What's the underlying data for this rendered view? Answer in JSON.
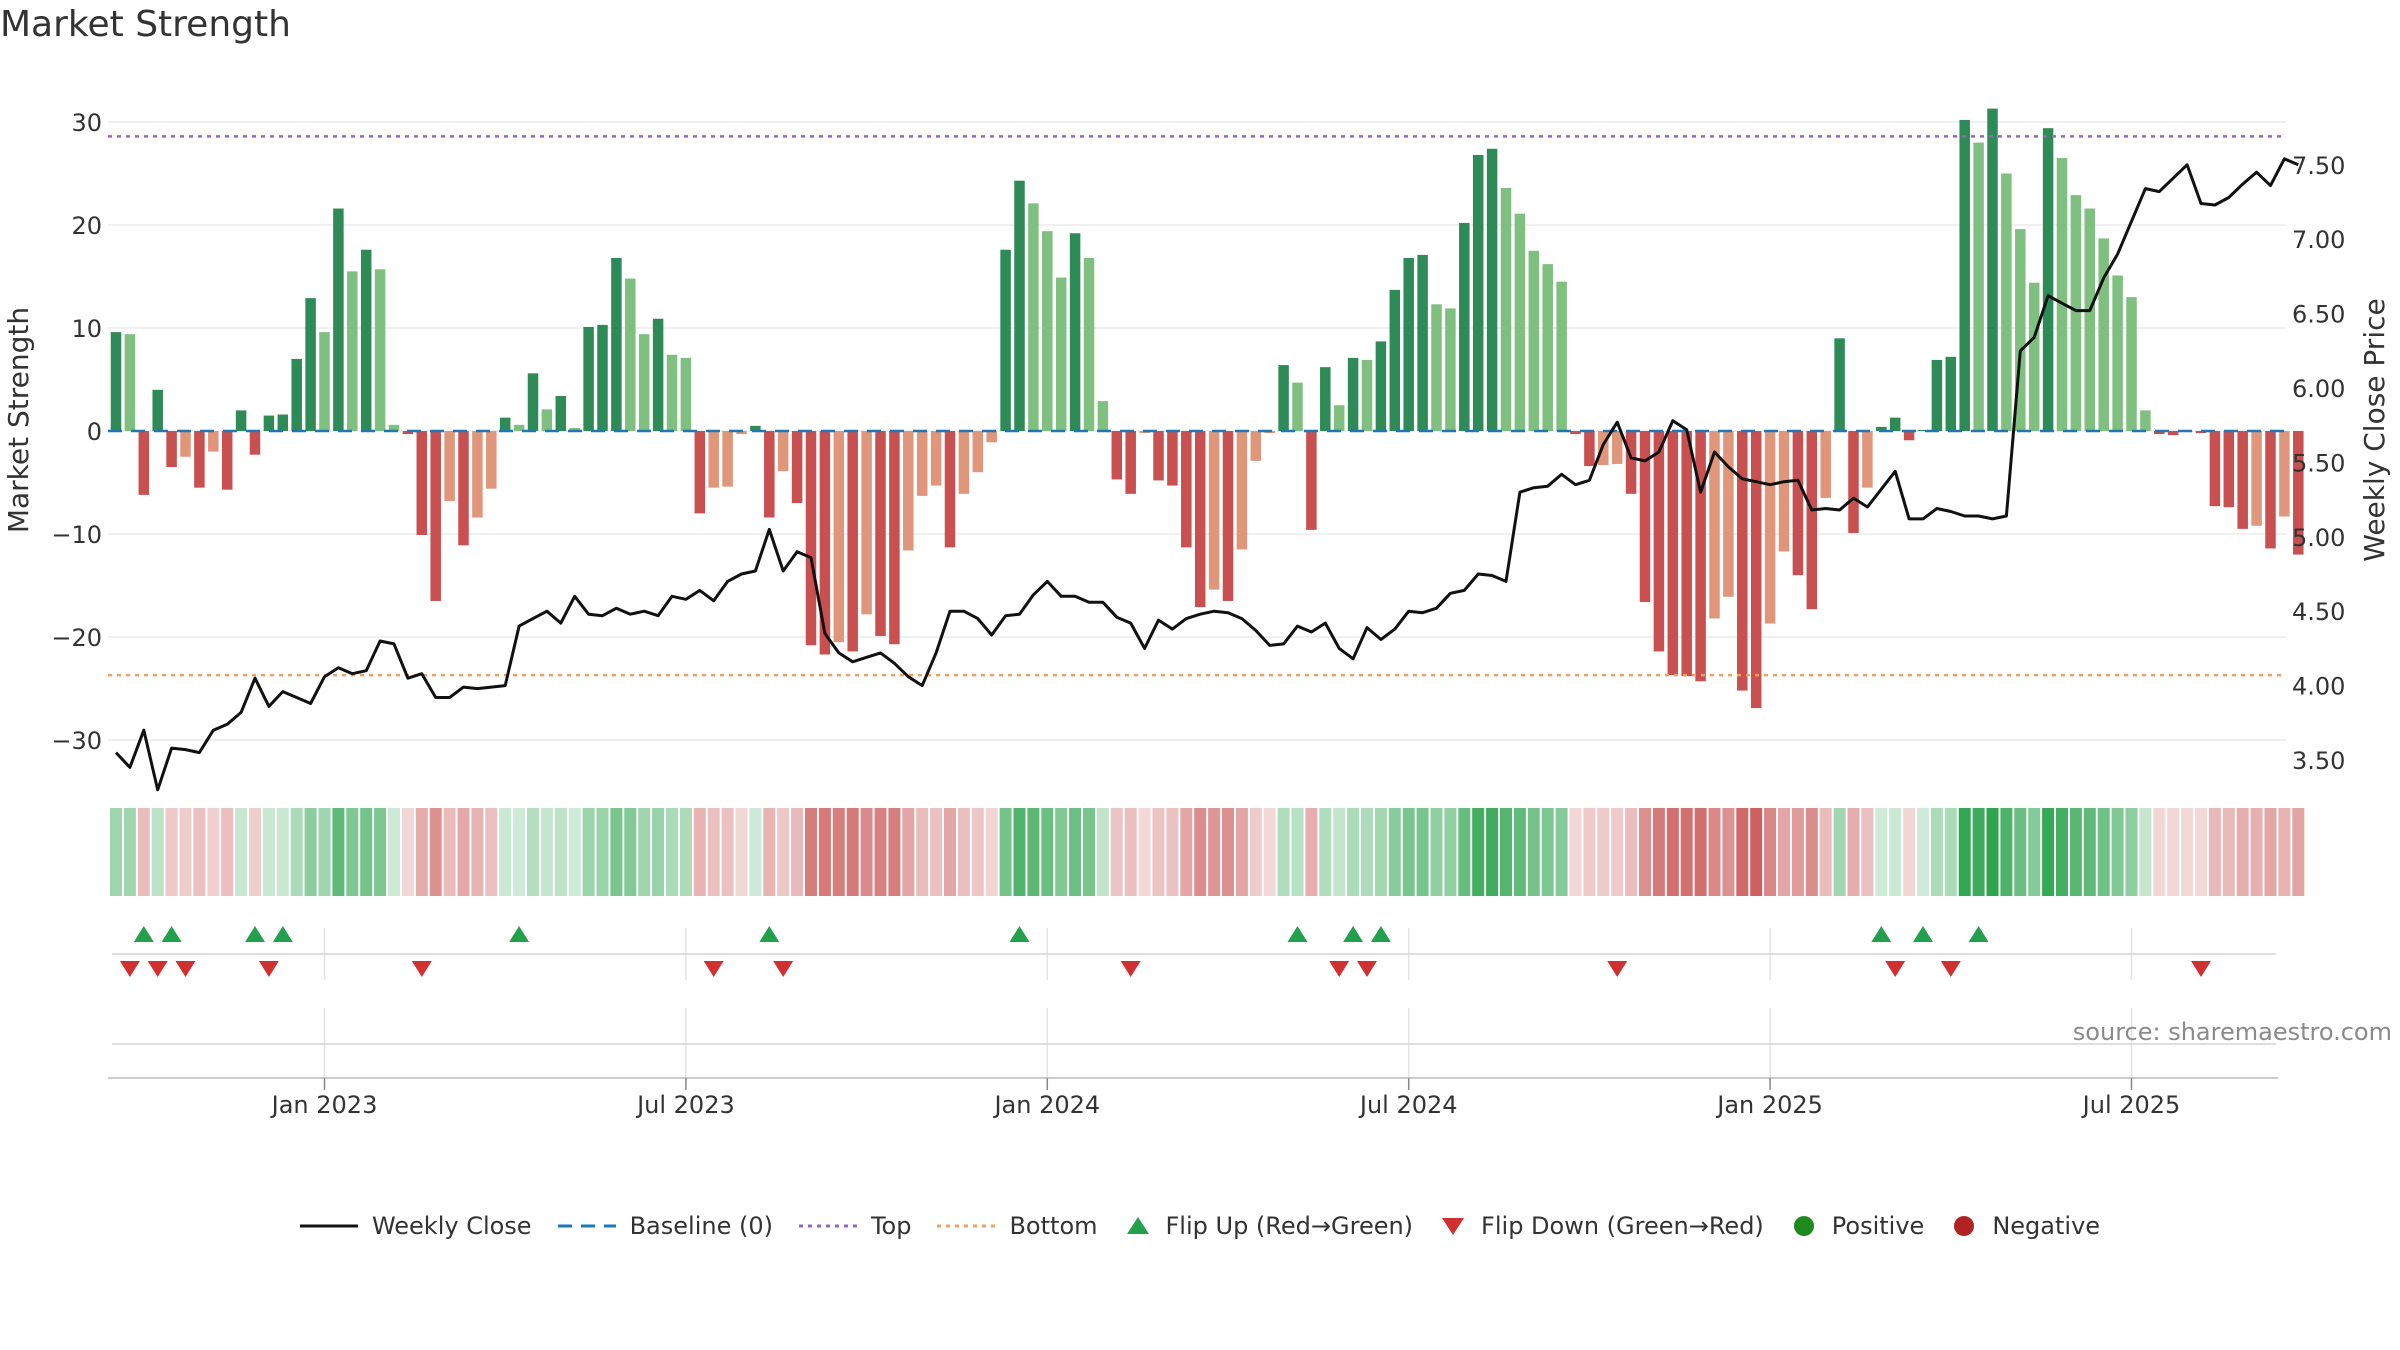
{
  "title": "Market Strength",
  "source": "source: sharemaestro.com",
  "colors": {
    "pos_dark": "#2e8b57",
    "pos_light": "#7fbf7f",
    "neg_dark": "#c85050",
    "neg_light": "#e0967a",
    "close": "#111111",
    "baseline": "#1f77b4",
    "top": "#9467bd",
    "bottom": "#f0a060",
    "flip_up": "#22a04b",
    "flip_down": "#d03030",
    "positive": "#1e8a1e",
    "negative": "#b22222"
  },
  "chart_data": {
    "type": "bar+line",
    "title": "Market Strength",
    "ylabel_left": "Market Strength",
    "ylabel_right": "Weekly Close Price",
    "ylim_left": [
      -34,
      33
    ],
    "ylim_right": [
      3.2,
      7.68
    ],
    "yticks_left": [
      "30",
      "20",
      "10",
      "0",
      "−10",
      "−20",
      "−30"
    ],
    "yticks_left_values": [
      30,
      20,
      10,
      0,
      -10,
      -20,
      -30
    ],
    "yticks_right": [
      "7.50",
      "7.00",
      "6.50",
      "6.00",
      "5.50",
      "5.00",
      "4.50",
      "4.00",
      "3.50"
    ],
    "yticks_right_values": [
      7.5,
      7.0,
      6.5,
      6.0,
      5.5,
      5.0,
      4.5,
      4.0,
      3.5
    ],
    "x_start": "2022-10-07",
    "x_step_weeks": 1,
    "xticks": [
      "Jan 2023",
      "Jul 2023",
      "Jan 2024",
      "Jul 2024",
      "Jan 2025",
      "Jul 2025"
    ],
    "xtick_week_index": [
      15,
      41,
      67,
      93,
      119,
      145
    ],
    "top_level": 28.6,
    "bottom_level": -23.7,
    "strength": [
      9.6,
      9.4,
      -6.2,
      4,
      -3.5,
      -2.5,
      -5.5,
      -2,
      -5.7,
      2,
      -2.3,
      1.5,
      1.6,
      7,
      12.9,
      9.6,
      21.6,
      15.5,
      17.6,
      15.7,
      0.6,
      -0.3,
      -10.1,
      -16.5,
      -6.8,
      -11.1,
      -8.4,
      -5.6,
      1.3,
      0.6,
      5.6,
      2.1,
      3.4,
      0.3,
      10.1,
      10.3,
      16.8,
      14.8,
      9.4,
      10.9,
      7.4,
      7.1,
      -8,
      -5.5,
      -5.4,
      -0.3,
      0.5,
      -8.4,
      -3.9,
      -7,
      -20.8,
      -21.7,
      -20.5,
      -21.4,
      -17.8,
      -19.9,
      -20.7,
      -11.6,
      -6.3,
      -5.3,
      -11.3,
      -6.1,
      -4,
      -1.1,
      17.6,
      24.3,
      22.1,
      19.4,
      14.9,
      19.2,
      16.8,
      2.9,
      -4.7,
      -6.1,
      -0.2,
      -4.8,
      -5.3,
      -11.3,
      -17.1,
      -15.4,
      -16.5,
      -11.5,
      -2.9,
      -0.2,
      6.4,
      4.7,
      -9.6,
      6.2,
      2.5,
      7.1,
      6.9,
      8.7,
      13.7,
      16.8,
      17.1,
      12.3,
      11.9,
      20.2,
      26.8,
      27.4,
      23.6,
      21.1,
      17.5,
      16.2,
      14.5,
      -0.3,
      -3.4,
      -3.3,
      -3.2,
      -6.1,
      -16.6,
      -21.4,
      -23.7,
      -23.8,
      -24.3,
      -18.2,
      -16.1,
      -25.2,
      -26.9,
      -18.7,
      -11.7,
      -14,
      -17.3,
      -6.5,
      9,
      -9.9,
      -5.5,
      0.4,
      1.3,
      -0.9,
      0.1,
      6.9,
      7.2,
      30.2,
      28,
      31.3,
      25,
      19.6,
      14.4,
      29.4,
      26.5,
      22.9,
      21.6,
      18.7,
      15.1,
      13,
      2,
      -0.3,
      -0.4,
      -0.1,
      -0.2,
      -7.3,
      -7.4,
      -9.5,
      -9.2,
      -11.4,
      -8.3,
      -12
    ],
    "close": [
      3.55,
      3.45,
      3.7,
      3.3,
      3.58,
      3.57,
      3.55,
      3.7,
      3.74,
      3.82,
      4.05,
      3.86,
      3.96,
      3.92,
      3.88,
      4.06,
      4.12,
      4.08,
      4.1,
      4.3,
      4.28,
      4.05,
      4.08,
      3.92,
      3.92,
      3.99,
      3.98,
      3.99,
      4,
      4.4,
      4.45,
      4.5,
      4.42,
      4.6,
      4.48,
      4.47,
      4.52,
      4.48,
      4.5,
      4.47,
      4.6,
      4.58,
      4.64,
      4.57,
      4.7,
      4.75,
      4.77,
      5.05,
      4.77,
      4.9,
      4.86,
      4.35,
      4.22,
      4.16,
      4.19,
      4.22,
      4.15,
      4.06,
      4,
      4.22,
      4.5,
      4.5,
      4.45,
      4.34,
      4.47,
      4.48,
      4.61,
      4.7,
      4.6,
      4.6,
      4.56,
      4.56,
      4.46,
      4.42,
      4.25,
      4.44,
      4.38,
      4.45,
      4.48,
      4.5,
      4.49,
      4.45,
      4.37,
      4.27,
      4.28,
      4.4,
      4.36,
      4.42,
      4.25,
      4.18,
      4.39,
      4.31,
      4.38,
      4.5,
      4.49,
      4.52,
      4.62,
      4.64,
      4.75,
      4.74,
      4.7,
      5.3,
      5.33,
      5.34,
      5.42,
      5.35,
      5.38,
      5.62,
      5.77,
      5.53,
      5.51,
      5.57,
      5.78,
      5.72,
      5.3,
      5.57,
      5.47,
      5.39,
      5.37,
      5.35,
      5.37,
      5.38,
      5.18,
      5.19,
      5.18,
      5.26,
      5.2,
      5.32,
      5.44,
      5.12,
      5.12,
      5.19,
      5.17,
      5.14,
      5.14,
      5.12,
      5.14,
      6.25,
      6.34,
      6.62,
      6.57,
      6.52,
      6.52,
      6.74,
      6.9,
      7.12,
      7.34,
      7.32,
      7.41,
      7.5,
      7.24,
      7.23,
      7.28,
      7.37,
      7.45,
      7.36,
      7.54,
      7.5
    ],
    "flip_up_weeks": [
      2,
      4,
      10,
      12,
      29,
      47,
      65,
      85,
      89,
      91,
      127,
      130,
      134
    ],
    "flip_down_weeks": [
      1,
      3,
      5,
      11,
      22,
      43,
      48,
      73,
      88,
      90,
      108,
      128,
      132,
      150
    ],
    "series": [
      {
        "name": "Weekly Close"
      },
      {
        "name": "Baseline (0)"
      },
      {
        "name": "Top"
      },
      {
        "name": "Bottom"
      },
      {
        "name": "Flip Up (Red→Green)"
      },
      {
        "name": "Flip Down (Green→Red)"
      },
      {
        "name": "Positive"
      },
      {
        "name": "Negative"
      }
    ]
  },
  "legend": [
    {
      "label": "Weekly Close",
      "kind": "line"
    },
    {
      "label": "Baseline (0)",
      "kind": "dash"
    },
    {
      "label": "Top",
      "kind": "dot-purple"
    },
    {
      "label": "Bottom",
      "kind": "dot-orange"
    },
    {
      "label": "Flip Up (Red→Green)",
      "kind": "tri-up"
    },
    {
      "label": "Flip Down (Green→Red)",
      "kind": "tri-down"
    },
    {
      "label": "Positive",
      "kind": "circle-green"
    },
    {
      "label": "Negative",
      "kind": "circle-red"
    }
  ]
}
